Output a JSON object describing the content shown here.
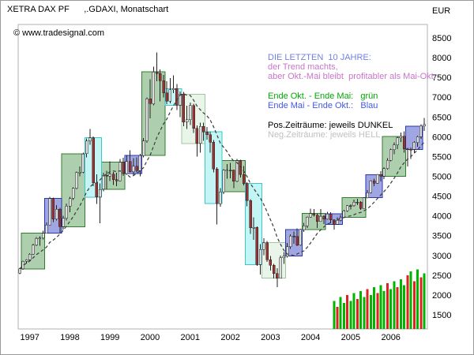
{
  "header": {
    "title": "XETRA DAX PF      ,.GDAXI, Monatschart",
    "unit_label": "EUR"
  },
  "copyright": "© www.tradesignal.com",
  "legend": {
    "items": [
      {
        "text": "DIE LETZTEN  10 JAHRE:",
        "color": "#7280dc"
      },
      {
        "text": "der Trend machts,",
        "color": "#c875c8"
      },
      {
        "text": "aber Okt.-Mai bleibt  profitabler als Mai-Okt.",
        "color": "#c875c8"
      },
      {
        "text": "Ende Okt. - Ende Mai:   grün",
        "color": "#00a800"
      },
      {
        "text": "Ende Mai - Ende Okt.:   Blau",
        "color": "#4257e8"
      },
      {
        "text": "Pos.Zeiträume: jeweils DUNKEL",
        "color": "#000000"
      },
      {
        "text": "Neg.Zeiträume: jeweils HELL",
        "color": "#c0c0c0"
      }
    ]
  },
  "chart_data": {
    "type": "candlestick",
    "title": "XETRA DAX PF, .GDAXI, Monatschart",
    "xlabel": "",
    "ylabel": "EUR",
    "grid": false,
    "legend_position": "inside-right",
    "ylim": [
      1140,
      8840
    ],
    "y_ticks": [
      1500,
      2000,
      2500,
      3000,
      3500,
      4000,
      4500,
      5000,
      5500,
      6000,
      6500,
      7000,
      7500,
      8000,
      8500
    ],
    "x_ticks": [
      "1997",
      "1998",
      "1999",
      "2000",
      "2001",
      "2002",
      "2003",
      "2004",
      "2005",
      "2006"
    ],
    "moving_average": {
      "period": 12,
      "style": "dashed",
      "color": "#3a3a3a"
    },
    "colors": {
      "plot_border": "#b0b0b0",
      "up": "#dddddd",
      "down": "#993333",
      "wick": "#222222",
      "volume_up": "#00b400",
      "volume_down": "#dd2222",
      "boxes": {
        "winter_dark": {
          "fill": "#9fc79f",
          "stroke": "#2f7d2f"
        },
        "winter_light": {
          "fill": "#e4f3e4",
          "stroke": "#9fc79f"
        },
        "summer_dark": {
          "fill": "#8f96dd",
          "stroke": "#2836b4"
        },
        "summer_light": {
          "fill": "#b9f3f3",
          "stroke": "#3fc6c6"
        }
      }
    },
    "candles": [
      [
        "1996-10",
        2550,
        2690,
        2530,
        2659
      ],
      [
        "1996-11",
        2659,
        2870,
        2640,
        2849
      ],
      [
        "1996-12",
        2849,
        2910,
        2800,
        2889
      ],
      [
        "1997-01",
        2889,
        3060,
        2850,
        3035
      ],
      [
        "1997-02",
        3035,
        3290,
        3020,
        3260
      ],
      [
        "1997-03",
        3260,
        3460,
        3230,
        3429
      ],
      [
        "1997-04",
        3429,
        3480,
        3240,
        3438
      ],
      [
        "1997-05",
        3438,
        3620,
        3400,
        3563
      ],
      [
        "1997-06",
        3563,
        3830,
        3550,
        3768
      ],
      [
        "1997-07",
        3768,
        4480,
        3760,
        4438
      ],
      [
        "1997-08",
        4438,
        4460,
        3840,
        3917
      ],
      [
        "1997-09",
        3917,
        4270,
        3880,
        4170
      ],
      [
        "1997-10",
        4170,
        4200,
        3570,
        3727
      ],
      [
        "1997-11",
        3727,
        4000,
        3650,
        3938
      ],
      [
        "1997-12",
        3938,
        4310,
        3880,
        4250
      ],
      [
        "1998-01",
        4250,
        4480,
        4090,
        4442
      ],
      [
        "1998-02",
        4442,
        4720,
        4400,
        4694
      ],
      [
        "1998-03",
        4694,
        5120,
        4670,
        5097
      ],
      [
        "1998-04",
        5097,
        5250,
        5000,
        5105
      ],
      [
        "1998-05",
        5105,
        5600,
        5080,
        5569
      ],
      [
        "1998-06",
        5569,
        5960,
        5480,
        5897
      ],
      [
        "1998-07",
        5897,
        6200,
        5800,
        5974
      ],
      [
        "1998-08",
        5974,
        6010,
        4750,
        4834
      ],
      [
        "1998-09",
        4834,
        5050,
        4300,
        4475
      ],
      [
        "1998-10",
        4475,
        4820,
        3810,
        4671
      ],
      [
        "1998-11",
        4671,
        5090,
        4620,
        5023
      ],
      [
        "1998-12",
        5023,
        5140,
        4670,
        5002
      ],
      [
        "1999-01",
        5002,
        5380,
        4880,
        5057
      ],
      [
        "1999-02",
        5057,
        5110,
        4780,
        4914
      ],
      [
        "1999-03",
        4914,
        5090,
        4750,
        4884
      ],
      [
        "1999-04",
        4884,
        5440,
        4870,
        5359
      ],
      [
        "1999-05",
        5359,
        5470,
        5010,
        5070
      ],
      [
        "1999-06",
        5070,
        5540,
        5040,
        5379
      ],
      [
        "1999-07",
        5379,
        5660,
        5100,
        5112
      ],
      [
        "1999-08",
        5112,
        5460,
        5020,
        5260
      ],
      [
        "1999-09",
        5260,
        5480,
        5100,
        5150
      ],
      [
        "1999-10",
        5150,
        5570,
        5000,
        5525
      ],
      [
        "1999-11",
        5525,
        5970,
        5480,
        5896
      ],
      [
        "1999-12",
        5896,
        6990,
        5850,
        6958
      ],
      [
        "2000-01",
        6958,
        7450,
        6470,
        6836
      ],
      [
        "2000-02",
        6836,
        7770,
        6800,
        7644
      ],
      [
        "2000-03",
        7644,
        8136,
        7400,
        7599
      ],
      [
        "2000-04",
        7599,
        7700,
        6900,
        7415
      ],
      [
        "2000-05",
        7415,
        7560,
        6990,
        7110
      ],
      [
        "2000-06",
        7110,
        7400,
        6830,
        6898
      ],
      [
        "2000-07",
        6898,
        7480,
        6850,
        7190
      ],
      [
        "2000-08",
        7190,
        7550,
        7100,
        7216
      ],
      [
        "2000-09",
        7216,
        7330,
        6680,
        6798
      ],
      [
        "2000-10",
        6798,
        7140,
        6500,
        7077
      ],
      [
        "2000-11",
        7077,
        7130,
        6270,
        6372
      ],
      [
        "2000-12",
        6372,
        6790,
        6200,
        6434
      ],
      [
        "2001-01",
        6434,
        6870,
        6300,
        6795
      ],
      [
        "2001-02",
        6795,
        6840,
        6100,
        6208
      ],
      [
        "2001-03",
        6208,
        6290,
        5500,
        5830
      ],
      [
        "2001-04",
        5830,
        6360,
        5600,
        6265
      ],
      [
        "2001-05",
        6265,
        6360,
        5900,
        6123
      ],
      [
        "2001-06",
        6123,
        6250,
        5930,
        6058
      ],
      [
        "2001-07",
        6058,
        6130,
        5600,
        5861
      ],
      [
        "2001-08",
        5861,
        5920,
        5100,
        5188
      ],
      [
        "2001-09",
        5188,
        5230,
        3787,
        4308
      ],
      [
        "2001-10",
        4308,
        4700,
        4230,
        4610
      ],
      [
        "2001-11",
        4610,
        5180,
        4550,
        5154
      ],
      [
        "2001-12",
        5154,
        5310,
        4940,
        5160
      ],
      [
        "2002-01",
        5160,
        5340,
        4950,
        5154
      ],
      [
        "2002-02",
        5154,
        5170,
        4700,
        4880
      ],
      [
        "2002-03",
        4880,
        5440,
        4850,
        5397
      ],
      [
        "2002-04",
        5397,
        5420,
        4970,
        5041
      ],
      [
        "2002-05",
        5041,
        5260,
        4770,
        4818
      ],
      [
        "2002-06",
        4818,
        4850,
        4240,
        4383
      ],
      [
        "2002-07",
        4383,
        4420,
        3540,
        3700
      ],
      [
        "2002-08",
        3700,
        3960,
        3390,
        3712
      ],
      [
        "2002-09",
        3712,
        3730,
        2740,
        2769
      ],
      [
        "2002-10",
        2769,
        3280,
        2519,
        3152
      ],
      [
        "2002-11",
        3152,
        3430,
        3010,
        3320
      ],
      [
        "2002-12",
        3320,
        3360,
        2840,
        2893
      ],
      [
        "2003-01",
        2893,
        2990,
        2620,
        2748
      ],
      [
        "2003-02",
        2748,
        2790,
        2420,
        2547
      ],
      [
        "2003-03",
        2547,
        2680,
        2202,
        2423
      ],
      [
        "2003-04",
        2423,
        3000,
        2420,
        2942
      ],
      [
        "2003-05",
        2942,
        3080,
        2790,
        2982
      ],
      [
        "2003-06",
        2982,
        3310,
        2950,
        3221
      ],
      [
        "2003-07",
        3221,
        3530,
        3160,
        3487
      ],
      [
        "2003-08",
        3487,
        3600,
        3290,
        3484
      ],
      [
        "2003-09",
        3484,
        3680,
        3230,
        3256
      ],
      [
        "2003-10",
        3256,
        3670,
        3240,
        3655
      ],
      [
        "2003-11",
        3655,
        3820,
        3590,
        3746
      ],
      [
        "2003-12",
        3746,
        3980,
        3690,
        3965
      ],
      [
        "2004-01",
        3965,
        4180,
        3950,
        4058
      ],
      [
        "2004-02",
        4058,
        4170,
        3980,
        4018
      ],
      [
        "2004-03",
        4018,
        4060,
        3690,
        3857
      ],
      [
        "2004-04",
        3857,
        4170,
        3850,
        3985
      ],
      [
        "2004-05",
        3985,
        4020,
        3790,
        3921
      ],
      [
        "2004-06",
        3921,
        4100,
        3900,
        4053
      ],
      [
        "2004-07",
        4053,
        4090,
        3810,
        3896
      ],
      [
        "2004-08",
        3896,
        3910,
        3650,
        3785
      ],
      [
        "2004-09",
        3785,
        3960,
        3770,
        3893
      ],
      [
        "2004-10",
        3893,
        4020,
        3860,
        3960
      ],
      [
        "2004-11",
        3960,
        4150,
        3940,
        4126
      ],
      [
        "2004-12",
        4126,
        4270,
        4100,
        4256
      ],
      [
        "2005-01",
        4256,
        4290,
        4160,
        4254
      ],
      [
        "2005-02",
        4254,
        4410,
        4230,
        4350
      ],
      [
        "2005-03",
        4350,
        4430,
        4270,
        4348
      ],
      [
        "2005-04",
        4348,
        4370,
        4150,
        4184
      ],
      [
        "2005-05",
        4184,
        4470,
        4180,
        4460
      ],
      [
        "2005-06",
        4460,
        4650,
        4440,
        4586
      ],
      [
        "2005-07",
        4586,
        4900,
        4570,
        4886
      ],
      [
        "2005-08",
        4886,
        4940,
        4750,
        4829
      ],
      [
        "2005-09",
        4829,
        5060,
        4810,
        5044
      ],
      [
        "2005-10",
        5044,
        5130,
        4870,
        5002
      ],
      [
        "2005-11",
        5002,
        5230,
        4930,
        5193
      ],
      [
        "2005-12",
        5193,
        5460,
        5170,
        5408
      ],
      [
        "2006-01",
        5408,
        5700,
        5380,
        5674
      ],
      [
        "2006-02",
        5674,
        5860,
        5560,
        5796
      ],
      [
        "2006-03",
        5796,
        6010,
        5690,
        5970
      ],
      [
        "2006-04",
        5970,
        6110,
        5870,
        6009
      ],
      [
        "2006-05",
        6009,
        6140,
        5600,
        5692
      ],
      [
        "2006-06",
        5692,
        5720,
        5250,
        5683
      ],
      [
        "2006-07",
        5683,
        5730,
        5440,
        5682
      ],
      [
        "2006-08",
        5682,
        5890,
        5590,
        5859
      ],
      [
        "2006-09",
        5859,
        6030,
        5750,
        6004
      ],
      [
        "2006-10",
        6004,
        6320,
        5950,
        6269
      ],
      [
        "2006-11",
        6269,
        6480,
        6150,
        6309
      ]
    ],
    "seasonal_boxes": [
      {
        "from": "1996-10",
        "to": "1997-05",
        "season": "winter",
        "positive": true
      },
      {
        "from": "1997-10",
        "to": "1998-05",
        "season": "winter",
        "positive": true
      },
      {
        "from": "1998-10",
        "to": "1999-05",
        "season": "winter",
        "positive": true
      },
      {
        "from": "1999-10",
        "to": "2000-05",
        "season": "winter",
        "positive": true
      },
      {
        "from": "2000-10",
        "to": "2001-05",
        "season": "winter",
        "positive": false
      },
      {
        "from": "2001-10",
        "to": "2002-05",
        "season": "winter",
        "positive": true
      },
      {
        "from": "2002-10",
        "to": "2003-05",
        "season": "winter",
        "positive": false
      },
      {
        "from": "2003-10",
        "to": "2004-05",
        "season": "winter",
        "positive": true
      },
      {
        "from": "2004-10",
        "to": "2005-05",
        "season": "winter",
        "positive": true
      },
      {
        "from": "2005-10",
        "to": "2006-05",
        "season": "winter",
        "positive": true
      },
      {
        "from": "1997-05",
        "to": "1997-10",
        "season": "summer",
        "positive": true
      },
      {
        "from": "1998-05",
        "to": "1998-10",
        "season": "summer",
        "positive": false
      },
      {
        "from": "1999-05",
        "to": "1999-10",
        "season": "summer",
        "positive": true
      },
      {
        "from": "2000-05",
        "to": "2000-10",
        "season": "summer",
        "positive": false
      },
      {
        "from": "2001-05",
        "to": "2001-10",
        "season": "summer",
        "positive": false
      },
      {
        "from": "2002-05",
        "to": "2002-10",
        "season": "summer",
        "positive": false
      },
      {
        "from": "2003-05",
        "to": "2003-10",
        "season": "summer",
        "positive": true
      },
      {
        "from": "2004-05",
        "to": "2004-10",
        "season": "summer",
        "positive": true
      },
      {
        "from": "2005-05",
        "to": "2005-10",
        "season": "summer",
        "positive": true
      },
      {
        "from": "2006-05",
        "to": "2006-10",
        "season": "summer",
        "positive": true
      }
    ],
    "volume_bars": {
      "start": "2004-08",
      "values": [
        1850,
        1700,
        1950,
        1800,
        2000,
        1850,
        2050,
        1900,
        2100,
        1950,
        2150,
        2000,
        2200,
        2050,
        2250,
        2100,
        2300,
        2150,
        2350,
        2200,
        2400,
        2250,
        2500,
        2600,
        2350,
        2650,
        2450,
        2550
      ],
      "colors": [
        "g",
        "r",
        "g",
        "g",
        "r",
        "g",
        "g",
        "r",
        "g",
        "g",
        "r",
        "g",
        "g",
        "r",
        "g",
        "g",
        "r",
        "g",
        "g",
        "r",
        "g",
        "g",
        "r",
        "g",
        "r",
        "g",
        "r",
        "g"
      ]
    }
  }
}
